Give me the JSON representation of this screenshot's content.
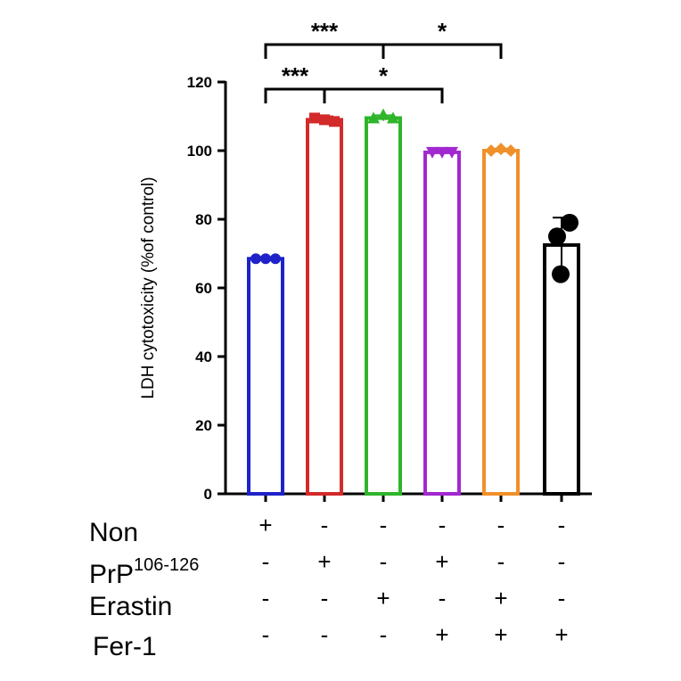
{
  "chart_data": {
    "type": "bar",
    "ylabel": "LDH cytotoxicity (%of control)",
    "ylim": [
      0,
      120
    ],
    "yticks": [
      0,
      20,
      40,
      60,
      80,
      100,
      120
    ],
    "bars": [
      {
        "value": 68.5,
        "error": 0.5,
        "color": "#1e22c8",
        "points": [
          68.5,
          68.5,
          68.5
        ],
        "marker": "circle"
      },
      {
        "value": 109,
        "error": 1.0,
        "color": "#d32a2a",
        "points": [
          109.5,
          109,
          108.5
        ],
        "marker": "square"
      },
      {
        "value": 109.5,
        "error": 0.8,
        "color": "#2fb52a",
        "points": [
          109.5,
          110.5,
          109.5
        ],
        "marker": "triangle"
      },
      {
        "value": 99.5,
        "error": 0.6,
        "color": "#a228d0",
        "points": [
          99.5,
          99.5,
          99.5
        ],
        "marker": "triangle-down"
      },
      {
        "value": 100,
        "error": 0.6,
        "color": "#f0902a",
        "points": [
          100,
          100.5,
          100
        ],
        "marker": "diamond"
      },
      {
        "value": 72.5,
        "error": 8.0,
        "color": "#000000",
        "points": [
          79,
          75,
          64
        ],
        "marker": "circle"
      }
    ],
    "conditions": [
      {
        "label": "Non",
        "sup": "",
        "marks": [
          "+",
          "-",
          "-",
          "-",
          "-",
          "-"
        ]
      },
      {
        "label": "PrP",
        "sup": "106-126",
        "marks": [
          "-",
          "+",
          "-",
          "+",
          "-",
          "-"
        ]
      },
      {
        "label": "Erastin",
        "sup": "",
        "marks": [
          "-",
          "-",
          "+",
          "-",
          "+",
          "-"
        ]
      },
      {
        "label": "Fer-1",
        "sup": "",
        "marks": [
          "-",
          "-",
          "-",
          "+",
          "+",
          "+"
        ]
      }
    ],
    "significance": [
      {
        "from": 0,
        "to": 1,
        "text": "***",
        "level": 1
      },
      {
        "from": 1,
        "to": 3,
        "text": "*",
        "level": 1
      },
      {
        "from": 0,
        "to": 2,
        "text": "***",
        "level": 2
      },
      {
        "from": 2,
        "to": 4,
        "text": "*",
        "level": 2
      }
    ]
  }
}
